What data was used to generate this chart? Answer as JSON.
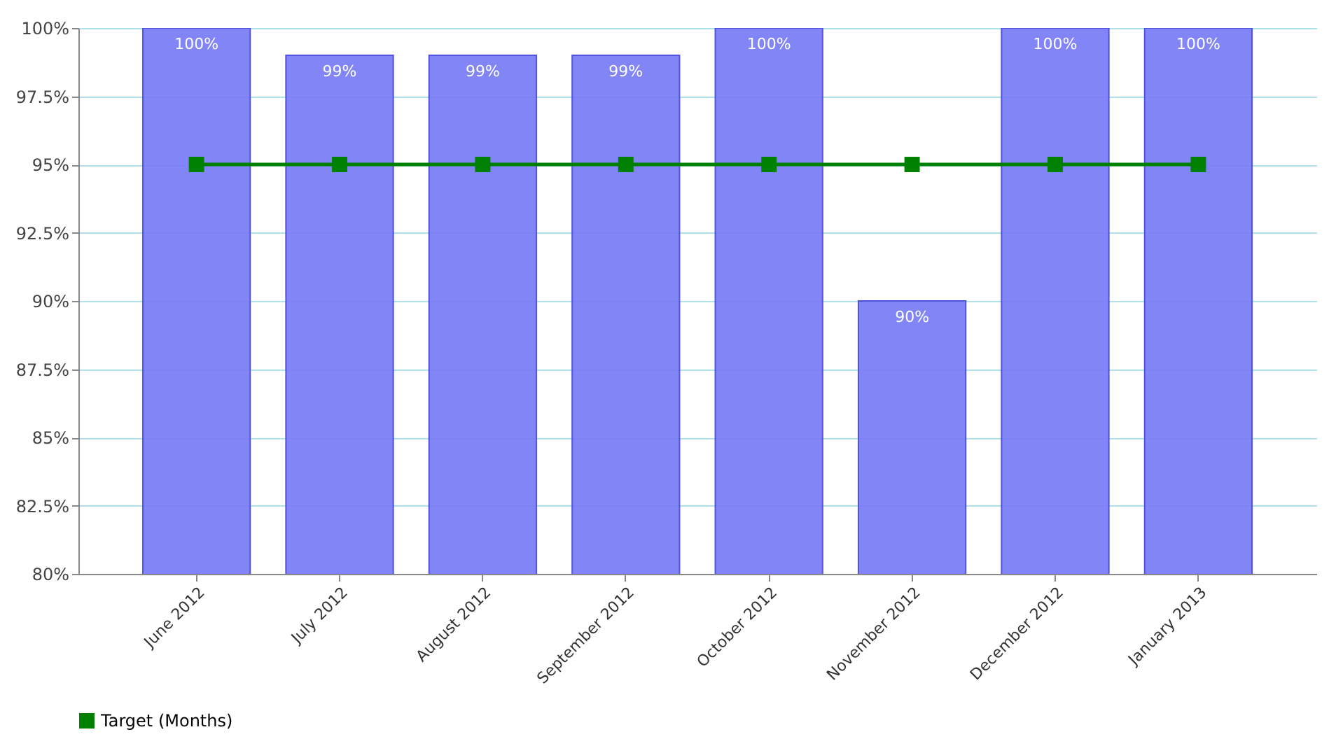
{
  "chart_data": {
    "type": "bar",
    "categories": [
      "June 2012",
      "July 2012",
      "August 2012",
      "September 2012",
      "October 2012",
      "November 2012",
      "December 2012",
      "January 2013"
    ],
    "series": [
      {
        "color": "#7b7ff5",
        "values": [
          100,
          99,
          99,
          99,
          100,
          90,
          100,
          100
        ],
        "value_labels": [
          "100%",
          "99%",
          "99%",
          "99%",
          "100%",
          "90%",
          "100%",
          "100%"
        ]
      },
      {
        "type": "line",
        "name": "Target (Months)",
        "color": "#008000",
        "values": [
          95,
          95,
          95,
          95,
          95,
          95,
          95,
          95
        ]
      }
    ],
    "ylim": [
      80,
      100
    ],
    "yticks": [
      {
        "value": 80,
        "label": "80%"
      },
      {
        "value": 82.5,
        "label": "82.5%"
      },
      {
        "value": 85,
        "label": "85%"
      },
      {
        "value": 87.5,
        "label": "87.5%"
      },
      {
        "value": 90,
        "label": "90%"
      },
      {
        "value": 92.5,
        "label": "92.5%"
      },
      {
        "value": 95,
        "label": "95%"
      },
      {
        "value": 97.5,
        "label": "97.5%"
      },
      {
        "value": 100,
        "label": "100%"
      }
    ],
    "grid": "y",
    "legend": "bottom",
    "marker": "square"
  }
}
